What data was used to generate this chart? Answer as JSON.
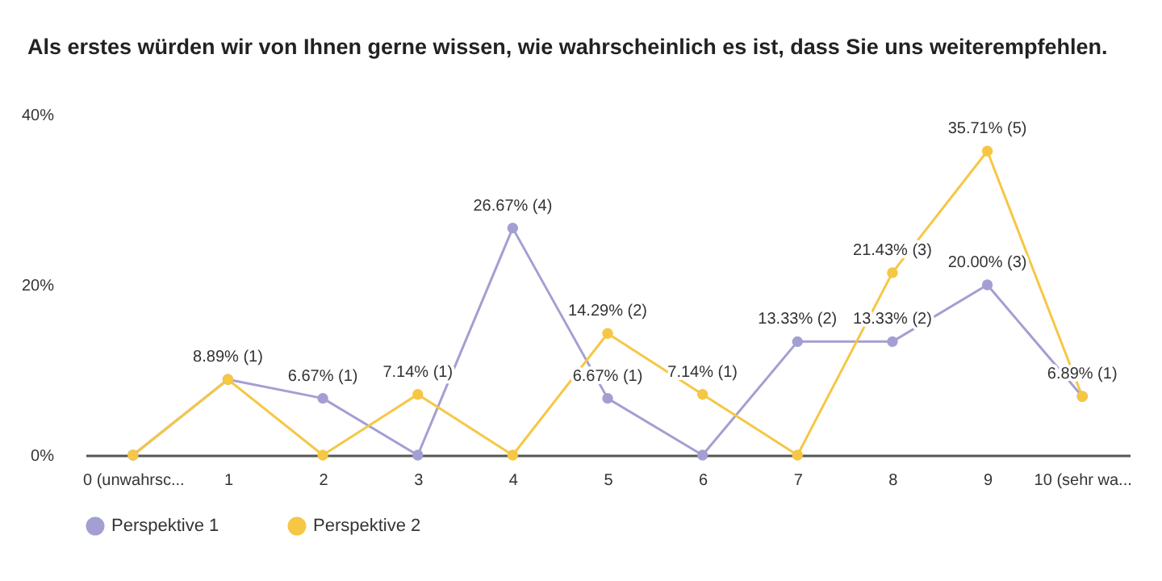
{
  "chart_data": {
    "type": "line",
    "title": "Als erstes würden wir von Ihnen gerne wissen, wie wahrscheinlich es ist, dass Sie uns weiterempfehlen.",
    "categories": [
      "0 (unwahrsc...",
      "1",
      "2",
      "3",
      "4",
      "5",
      "6",
      "7",
      "8",
      "9",
      "10 (sehr wa..."
    ],
    "series": [
      {
        "name": "Perspektive 1",
        "color": "#a39fd2",
        "values": [
          0,
          8.89,
          6.67,
          0,
          26.67,
          6.67,
          0,
          13.33,
          13.33,
          20.0,
          6.89
        ],
        "value_labels": [
          null,
          null,
          "6.67% (1)",
          null,
          "26.67% (4)",
          "6.67% (1)",
          null,
          "13.33% (2)",
          "13.33% (2)",
          "20.00% (3)",
          null
        ]
      },
      {
        "name": "Perspektive 2",
        "color": "#f6c744",
        "values": [
          0,
          8.89,
          0,
          7.14,
          0,
          14.29,
          7.14,
          0,
          21.43,
          35.71,
          6.89
        ],
        "value_labels": [
          null,
          "8.89% (1)",
          null,
          "7.14% (1)",
          null,
          "14.29% (2)",
          "7.14% (1)",
          null,
          "21.43% (3)",
          "35.71% (5)",
          "6.89% (1)"
        ]
      }
    ],
    "ylim": [
      0,
      40
    ],
    "yticks": [
      {
        "value": 0,
        "label": "0%"
      },
      {
        "value": 20,
        "label": "20%"
      },
      {
        "value": 40,
        "label": "40%"
      }
    ],
    "legend": "bottom",
    "marker": "circle"
  }
}
